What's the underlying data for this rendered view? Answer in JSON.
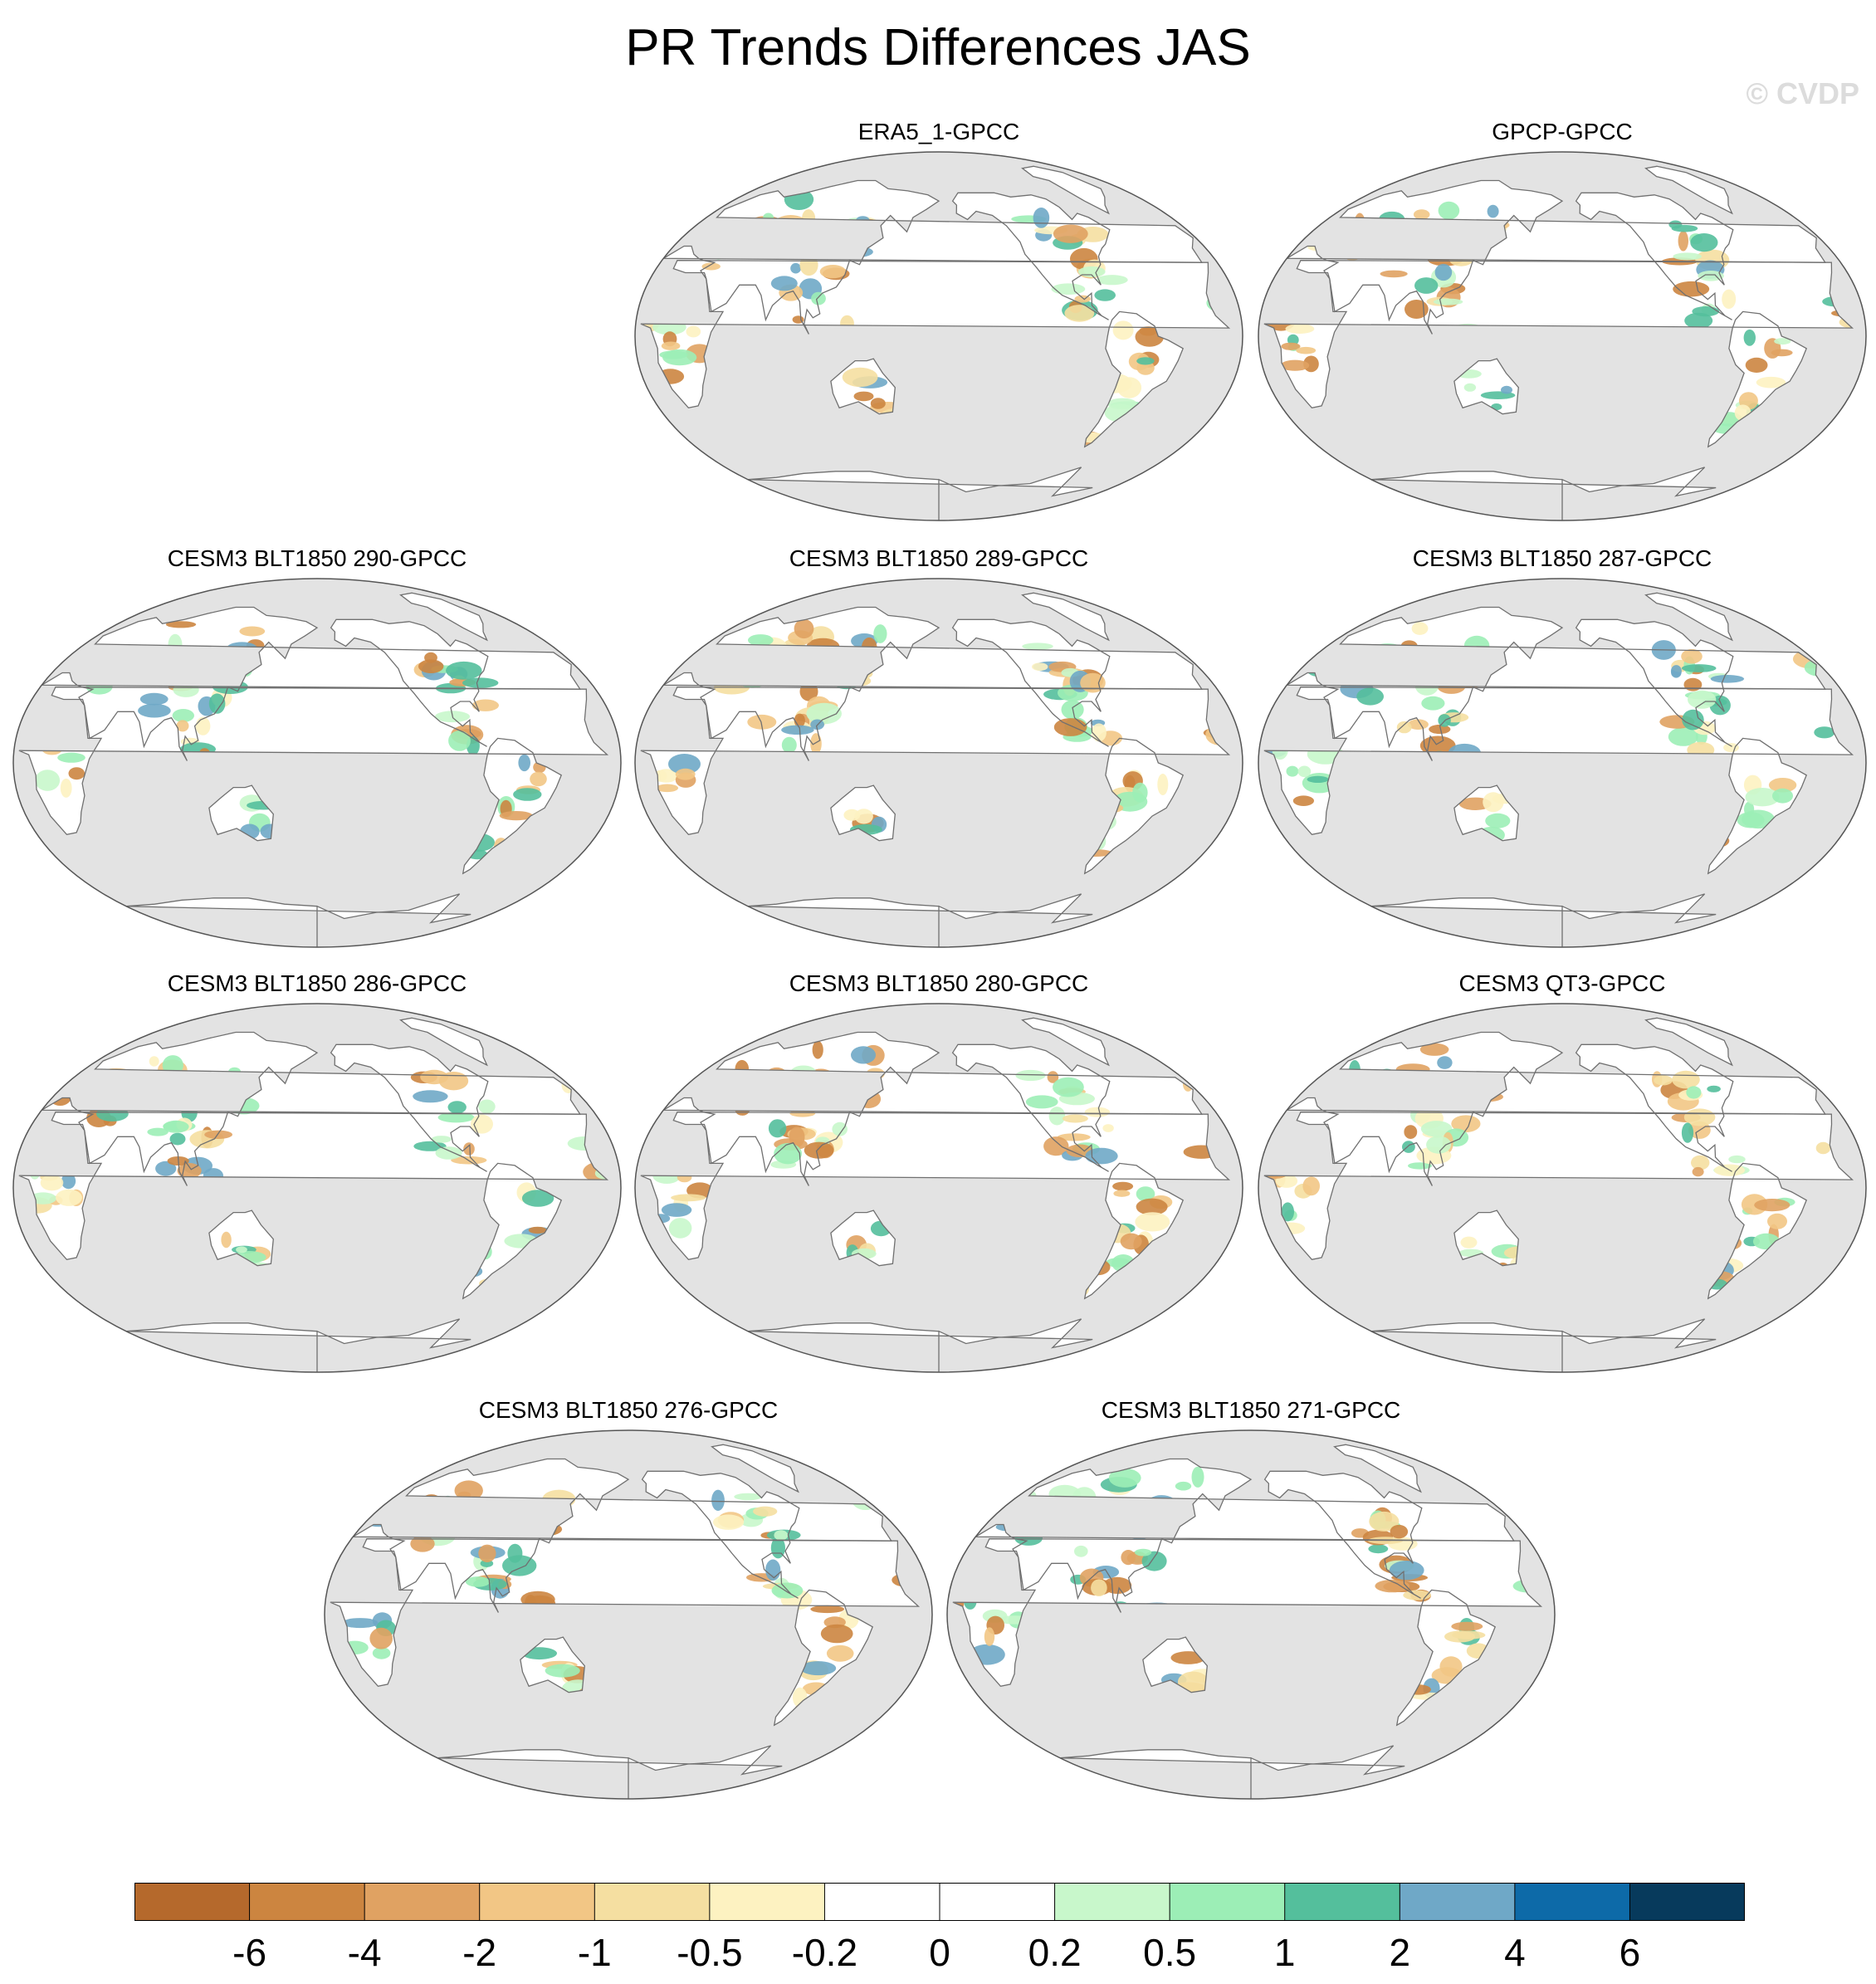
{
  "title": "PR Trends Differences JAS",
  "watermark": "© CVDP",
  "colors": {
    "ocean": "#e3e3e3",
    "land": "#ffffff",
    "coast": "#707070",
    "outline": "#555555"
  },
  "panels": [
    {
      "title": "ERA5_1-GPCC",
      "seed": 11
    },
    {
      "title": "GPCP-GPCC",
      "seed": 23
    },
    {
      "title": "CESM3 BLT1850 290-GPCC",
      "seed": 37
    },
    {
      "title": "CESM3 BLT1850 289-GPCC",
      "seed": 41
    },
    {
      "title": "CESM3 BLT1850 287-GPCC",
      "seed": 53
    },
    {
      "title": "CESM3 BLT1850 286-GPCC",
      "seed": 67
    },
    {
      "title": "CESM3 BLT1850 280-GPCC",
      "seed": 71
    },
    {
      "title": "CESM3 QT3-GPCC",
      "seed": 83
    },
    {
      "title": "CESM3 BLT1850 276-GPCC",
      "seed": 97
    },
    {
      "title": "CESM3 BLT1850 271-GPCC",
      "seed": 103
    }
  ],
  "colorbar": {
    "labels": [
      "-6",
      "-4",
      "-2",
      "-1",
      "-0.5",
      "-0.2",
      "0",
      "0.2",
      "0.5",
      "1",
      "2",
      "4",
      "6"
    ],
    "colors": [
      "#b5692c",
      "#cc8540",
      "#e0a262",
      "#f2c685",
      "#f5dfa1",
      "#fdf2c1",
      "#ffffff",
      "#ffffff",
      "#c8f7cb",
      "#9ceeb6",
      "#54bf9c",
      "#6fa8c7",
      "#0d6aa8",
      "#073a5c"
    ]
  }
}
